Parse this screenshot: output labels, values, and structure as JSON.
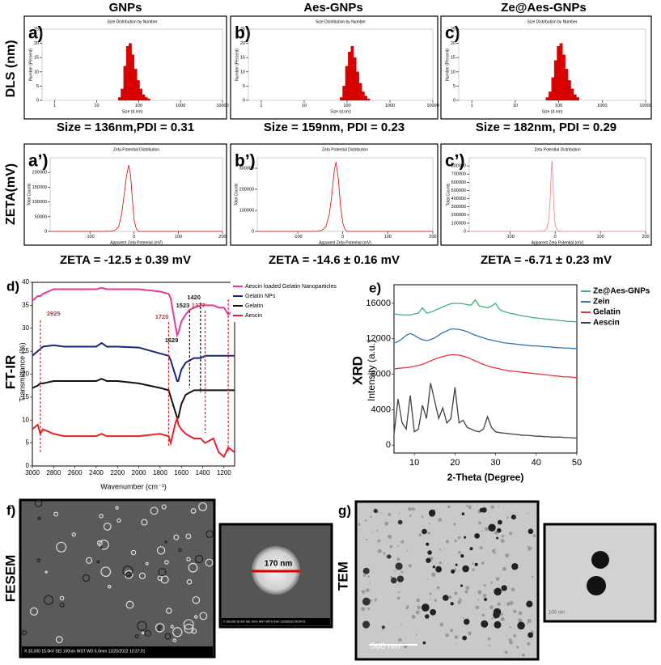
{
  "columns": [
    "GNPs",
    "Aes-GNPs",
    "Ze@Aes-GNPs"
  ],
  "rows": [
    "DLS (nm)",
    "ZETA(mV)"
  ],
  "chart_data": [
    {
      "type": "histogram",
      "panel": "a)",
      "title": "Size Distribution by Number",
      "x_label": "Size (d.nm)",
      "y_label": "Number (Percent)",
      "xscale": "log",
      "bins": [
        32.7,
        37.8,
        43.8,
        50.7,
        58.8,
        68.1,
        78.8,
        91.3,
        105.7,
        122.4,
        141.8,
        164.2,
        190.1
      ],
      "values": [
        1,
        4,
        12,
        19,
        20,
        16,
        11,
        7,
        4,
        2,
        1,
        0.5
      ],
      "color": "#e00000",
      "xlim": [
        0.5,
        10000
      ],
      "xticks": [
        1,
        10,
        100,
        1000,
        10000
      ],
      "ylim": [
        0,
        25
      ],
      "yticks": [
        0,
        5,
        10,
        15,
        20,
        25
      ],
      "caption": "Size = 136nm,PDI = 0.31"
    },
    {
      "type": "histogram",
      "panel": "b)",
      "title": "Size Distribution by Number",
      "x_label": "Size (d.nm)",
      "y_label": "Number (Percent)",
      "xscale": "log",
      "bins": [
        68.1,
        78.8,
        91.3,
        105.7,
        122.4,
        141.8,
        164.2,
        190.1,
        220.2,
        255,
        295.3,
        342
      ],
      "values": [
        1,
        5,
        12,
        17,
        19,
        15,
        10,
        6,
        3,
        1.5,
        0.5
      ],
      "color": "#e00000",
      "xlim": [
        0.5,
        10000
      ],
      "xticks": [
        1,
        10,
        100,
        1000,
        10000
      ],
      "ylim": [
        0,
        25
      ],
      "yticks": [
        0,
        5,
        10,
        15,
        20,
        25
      ],
      "caption": "Size = 159nm, PDI = 0.23"
    },
    {
      "type": "histogram",
      "panel": "c)",
      "title": "Size Distribution by Number",
      "x_label": "Size (d.nm)",
      "y_label": "Number (Percent)",
      "xscale": "log",
      "bins": [
        50.7,
        58.8,
        68.1,
        78.8,
        91.3,
        105.7,
        122.4,
        141.8,
        164.2,
        190.1,
        220.2,
        255,
        295.3
      ],
      "values": [
        1,
        3,
        8,
        14,
        19,
        20,
        16,
        11,
        7,
        4,
        2,
        1
      ],
      "color": "#e00000",
      "xlim": [
        0.5,
        10000
      ],
      "xticks": [
        1,
        10,
        100,
        1000,
        10000
      ],
      "ylim": [
        0,
        25
      ],
      "yticks": [
        0,
        5,
        10,
        15,
        20,
        25
      ],
      "caption": "Size = 182nm, PDI = 0.29"
    },
    {
      "type": "line",
      "panel": "a’)",
      "title": "Zeta Potential Distribution",
      "x_label": "Apparent Zeta Potential (mV)",
      "y_label": "Total Counts",
      "x": [
        -190,
        -60,
        -45,
        -35,
        -28,
        -22,
        -17,
        -12,
        -8,
        -4,
        0,
        5,
        10,
        200
      ],
      "values": [
        0,
        0,
        2000,
        15000,
        60000,
        130000,
        190000,
        225000,
        190000,
        110000,
        40000,
        8000,
        0,
        0
      ],
      "color": "#e00000",
      "xlim": [
        -190,
        200
      ],
      "xticks": [
        -100,
        0,
        100,
        200
      ],
      "ylim": [
        0,
        250000
      ],
      "yticks": [
        0,
        50000,
        100000,
        150000,
        200000
      ],
      "caption": "ZETA = -12.5 ± 0.39 mV"
    },
    {
      "type": "line",
      "panel": "b’)",
      "title": "Zeta Potential Distribution",
      "x_label": "Apparent Zeta Potential (mV)",
      "y_label": "Total Counts",
      "x": [
        -190,
        -60,
        -48,
        -38,
        -30,
        -24,
        -19,
        -15,
        -10,
        -5,
        0,
        5,
        10,
        200
      ],
      "values": [
        0,
        0,
        3000,
        20000,
        80000,
        180000,
        290000,
        330000,
        250000,
        120000,
        40000,
        8000,
        0,
        0
      ],
      "color": "#e00000",
      "xlim": [
        -190,
        200
      ],
      "xticks": [
        -100,
        0,
        100,
        200
      ],
      "ylim": [
        0,
        350000
      ],
      "yticks": [
        0,
        100000,
        200000,
        300000
      ],
      "caption": "ZETA = -14.6 ± 0.16 mV"
    },
    {
      "type": "line",
      "panel": "c’)",
      "title": "Zeta Potential Distribution",
      "x_label": "Apparent Zeta Potential (mV)",
      "y_label": "Total Counts",
      "x": [
        -190,
        -40,
        -25,
        -18,
        -14,
        -11,
        -9,
        -7,
        -5,
        -3,
        0,
        5,
        15,
        200
      ],
      "values": [
        0,
        0,
        5000,
        40000,
        150000,
        400000,
        700000,
        860000,
        650000,
        300000,
        80000,
        10000,
        0,
        0
      ],
      "color": "#f08080",
      "xlim": [
        -190,
        200
      ],
      "xticks": [
        -100,
        0,
        100,
        200
      ],
      "ylim": [
        0,
        900000
      ],
      "yticks": [
        0,
        100000,
        200000,
        300000,
        400000,
        500000,
        600000,
        700000,
        800000
      ],
      "caption": "ZETA = -6.71 ± 0.23 mV"
    },
    {
      "type": "line",
      "panel": "d)",
      "label": "FT-IR",
      "y_label": "Transmittance (%)",
      "x_label": "Wavenumber (cm⁻¹)",
      "x": [
        3000,
        2950,
        2925,
        2900,
        2800,
        2700,
        2600,
        2400,
        2350,
        2300,
        2200,
        2000,
        1800,
        1720,
        1700,
        1660,
        1640,
        1629,
        1600,
        1560,
        1523,
        1480,
        1420,
        1377,
        1300,
        1250,
        1200,
        1160,
        1100
      ],
      "series": [
        {
          "name": "Aescin loaded Gelatin Nanoparticles",
          "color": "#e8379a",
          "values": [
            36,
            37,
            37,
            37.5,
            38.5,
            38.5,
            38.5,
            38.5,
            38.8,
            38.5,
            38.5,
            38.5,
            38,
            37.5,
            36.5,
            31,
            28.5,
            29,
            31.5,
            33,
            34,
            34.5,
            35,
            35,
            35,
            34.5,
            34.5,
            33,
            34
          ]
        },
        {
          "name": "Gelatin NPs",
          "color": "#1a237e",
          "values": [
            24,
            25,
            25.5,
            26,
            26.3,
            26,
            26,
            26,
            26.8,
            26,
            26,
            25.8,
            24.5,
            24,
            23,
            20,
            18.5,
            18.5,
            21,
            22.5,
            23,
            23.5,
            23.5,
            24,
            24,
            24,
            24,
            24,
            24
          ]
        },
        {
          "name": "Gelatin",
          "color": "#111111",
          "values": [
            17,
            17.5,
            18,
            18,
            18.5,
            18.5,
            18.5,
            18.5,
            19,
            18.5,
            18.5,
            18,
            17,
            16.5,
            15,
            12,
            10.5,
            10.5,
            13.5,
            15.5,
            16,
            16.5,
            16.5,
            16.5,
            16.5,
            16.5,
            16.5,
            16.5,
            16.5
          ]
        },
        {
          "name": "Aescin",
          "color": "#e8202a",
          "values": [
            8,
            9,
            7,
            8,
            7,
            6.5,
            6.5,
            6.5,
            7,
            6.5,
            6.5,
            6.5,
            7,
            6.5,
            5,
            9,
            10.5,
            9,
            8,
            7,
            6.5,
            6,
            6,
            5,
            6,
            3,
            2,
            4,
            3
          ]
        }
      ],
      "xlim": [
        3000,
        1100
      ],
      "xticks": [
        3000,
        2800,
        2600,
        2400,
        2200,
        2000,
        1800,
        1600,
        1400,
        1200
      ],
      "ylim": [
        0,
        40
      ],
      "yticks": [
        0,
        5,
        10,
        15,
        20,
        25,
        30,
        35,
        40
      ],
      "legend": "upper right",
      "annotations": [
        {
          "x": 2925,
          "color": "#e8202a"
        },
        {
          "x": 1720,
          "color": "#e8202a"
        },
        {
          "x": 1629,
          "color": "#111111"
        },
        {
          "x": 1523,
          "color": "#111111"
        },
        {
          "x": 1420,
          "color": "#111111"
        },
        {
          "x": 1377,
          "color": "#e8202a"
        },
        {
          "x": 1160,
          "color": "#e8202a"
        }
      ]
    },
    {
      "type": "line",
      "panel": "e)",
      "label": "XRD",
      "y_label": "Intensity (a.u.)",
      "x_label": "2-Theta (Degree)",
      "x": [
        5,
        6,
        7,
        8,
        9,
        10,
        11,
        12,
        13,
        14,
        15,
        16,
        17,
        18,
        19,
        20,
        21,
        22,
        23,
        24,
        25,
        26,
        27,
        28,
        29,
        30,
        31,
        32,
        33,
        34,
        35,
        36,
        37,
        38,
        39,
        40,
        41,
        42,
        43,
        44,
        45,
        46,
        47,
        48,
        49,
        50
      ],
      "series": [
        {
          "name": "Ze@Aes-GNPs",
          "color": "#3cb371",
          "values": [
            14800,
            14750,
            14700,
            14700,
            14700,
            14800,
            14900,
            15500,
            14900,
            15000,
            15200,
            15400,
            15600,
            15800,
            15950,
            16000,
            16000,
            15950,
            15850,
            15800,
            16400,
            15700,
            15600,
            15500,
            15700,
            16000,
            15300,
            15100,
            14950,
            14850,
            14750,
            14650,
            14550,
            14500,
            14400,
            14350,
            14300,
            14250,
            14200,
            14150,
            14100,
            14050,
            14000,
            13950,
            13950,
            13900
          ]
        },
        {
          "name": "Zein",
          "color": "#2e75b6",
          "values": [
            11500,
            11700,
            12000,
            12400,
            12600,
            12400,
            12100,
            11900,
            11800,
            11900,
            12100,
            12400,
            12700,
            12900,
            13100,
            13100,
            13050,
            12950,
            12800,
            12600,
            12400,
            12250,
            12100,
            11950,
            11850,
            11750,
            11650,
            11550,
            11500,
            11450,
            11400,
            11350,
            11300,
            11250,
            11200,
            11200,
            11150,
            11100,
            11100,
            11050,
            11000,
            11000,
            10950,
            10950,
            10900,
            10900
          ]
        },
        {
          "name": "Gelatin",
          "color": "#e8323c",
          "values": [
            8600,
            8650,
            8700,
            8750,
            8800,
            8900,
            9000,
            9100,
            9300,
            9500,
            9700,
            9850,
            10000,
            10100,
            10200,
            10200,
            10150,
            10050,
            9900,
            9700,
            9500,
            9300,
            9100,
            8950,
            8800,
            8700,
            8600,
            8500,
            8400,
            8350,
            8300,
            8250,
            8200,
            8150,
            8100,
            8050,
            8000,
            7950,
            7900,
            7850,
            7800,
            7750,
            7700,
            7700,
            7650,
            7600
          ]
        },
        {
          "name": "Aescin",
          "color": "#404040",
          "values": [
            1200,
            5200,
            2500,
            1800,
            5600,
            1500,
            1800,
            4500,
            3000,
            7000,
            5000,
            3000,
            4200,
            2500,
            3000,
            6500,
            2500,
            2800,
            2000,
            1800,
            1600,
            1500,
            1800,
            3200,
            2000,
            1500,
            1400,
            1350,
            1300,
            1250,
            1200,
            1150,
            1100,
            1100,
            1050,
            1000,
            1000,
            950,
            950,
            900,
            900,
            900,
            850,
            850,
            800,
            800
          ]
        }
      ],
      "xlim": [
        5,
        50
      ],
      "xticks": [
        10,
        20,
        30,
        40,
        50
      ],
      "ylim": [
        -900,
        18100
      ],
      "yticks": [
        0,
        4000,
        8000,
        12000,
        16000
      ],
      "legend": "outside right"
    }
  ],
  "micrographs": {
    "fesem": {
      "panel": "f)",
      "label": "FESEM",
      "scale": "170 nm",
      "info": "X 33,000   15.0kV   SEI   100nm   INST   WD 6.0mm   12/25/2022   10:37:01",
      "inset_info": "X 200,000   15.0kV   SEI   10nm   INST   WD 6.0mm   12/25/2022   09:54:01"
    },
    "tem": {
      "panel": "g)",
      "label": "TEM",
      "scale": "500 nm",
      "inset_scale": "100 nm"
    }
  }
}
